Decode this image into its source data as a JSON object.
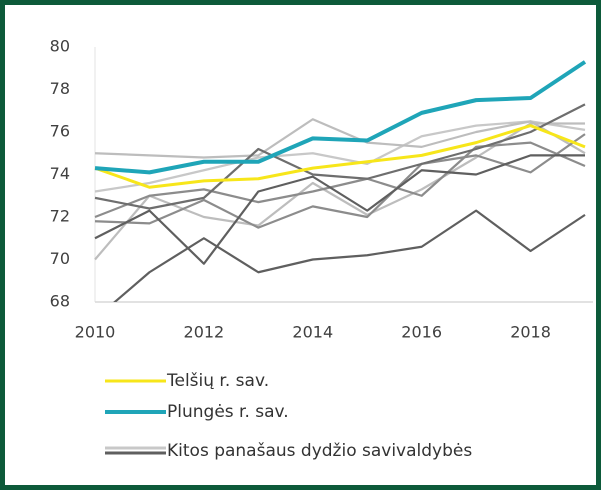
{
  "chart_data": {
    "type": "line",
    "x": [
      2010,
      2011,
      2012,
      2013,
      2014,
      2015,
      2016,
      2017,
      2018,
      2019
    ],
    "xlim": [
      2010,
      2019
    ],
    "xticks": [
      2010,
      2012,
      2014,
      2016,
      2018
    ],
    "ylim": [
      68,
      80
    ],
    "yticks": [
      68,
      70,
      72,
      74,
      76,
      78,
      80
    ],
    "series": [
      {
        "name": "Telšių r. sav.",
        "color": "#f7e61a",
        "values": [
          74.3,
          73.4,
          73.7,
          73.8,
          74.3,
          74.6,
          74.9,
          75.5,
          76.3,
          75.3
        ]
      },
      {
        "name": "Plungės r. sav.",
        "color": "#1fa5b8",
        "values": [
          74.3,
          74.1,
          74.6,
          74.6,
          75.7,
          75.6,
          76.9,
          77.5,
          77.6,
          79.3
        ]
      }
    ],
    "other_series": {
      "name": "Kitos panašaus dydžio savivaldybės",
      "lines": [
        {
          "color": "#5f5f5f",
          "values": [
            67.2,
            69.4,
            71.0,
            69.4,
            70.0,
            70.2,
            70.6,
            72.3,
            70.4,
            72.1
          ]
        },
        {
          "color": "#5f5f5f",
          "values": [
            71.0,
            72.3,
            69.8,
            73.2,
            73.9,
            72.3,
            74.2,
            74.0,
            74.9,
            74.9
          ]
        },
        {
          "color": "#6e6e6e",
          "values": [
            72.9,
            72.4,
            72.9,
            75.2,
            74.0,
            73.8,
            74.5,
            75.2,
            76.0,
            77.3
          ]
        },
        {
          "color": "#8c8c8c",
          "values": [
            71.8,
            71.7,
            72.8,
            71.5,
            72.5,
            72.0,
            74.5,
            74.9,
            74.1,
            75.9
          ]
        },
        {
          "color": "#8c8c8c",
          "values": [
            72.0,
            73.0,
            73.3,
            72.7,
            73.2,
            73.8,
            73.0,
            75.3,
            75.5,
            74.4
          ]
        },
        {
          "color": "#bdbdbd",
          "values": [
            70.0,
            73.0,
            72.0,
            71.6,
            73.6,
            72.1,
            73.3,
            74.8,
            76.4,
            76.4
          ]
        },
        {
          "color": "#bdbdbd",
          "values": [
            75.0,
            74.9,
            74.8,
            74.9,
            76.6,
            75.5,
            75.3,
            76.0,
            76.5,
            75.0
          ]
        },
        {
          "color": "#c8c8c8",
          "values": [
            73.2,
            73.6,
            74.2,
            74.8,
            75.0,
            74.5,
            75.8,
            76.3,
            76.5,
            76.1
          ]
        }
      ]
    }
  }
}
